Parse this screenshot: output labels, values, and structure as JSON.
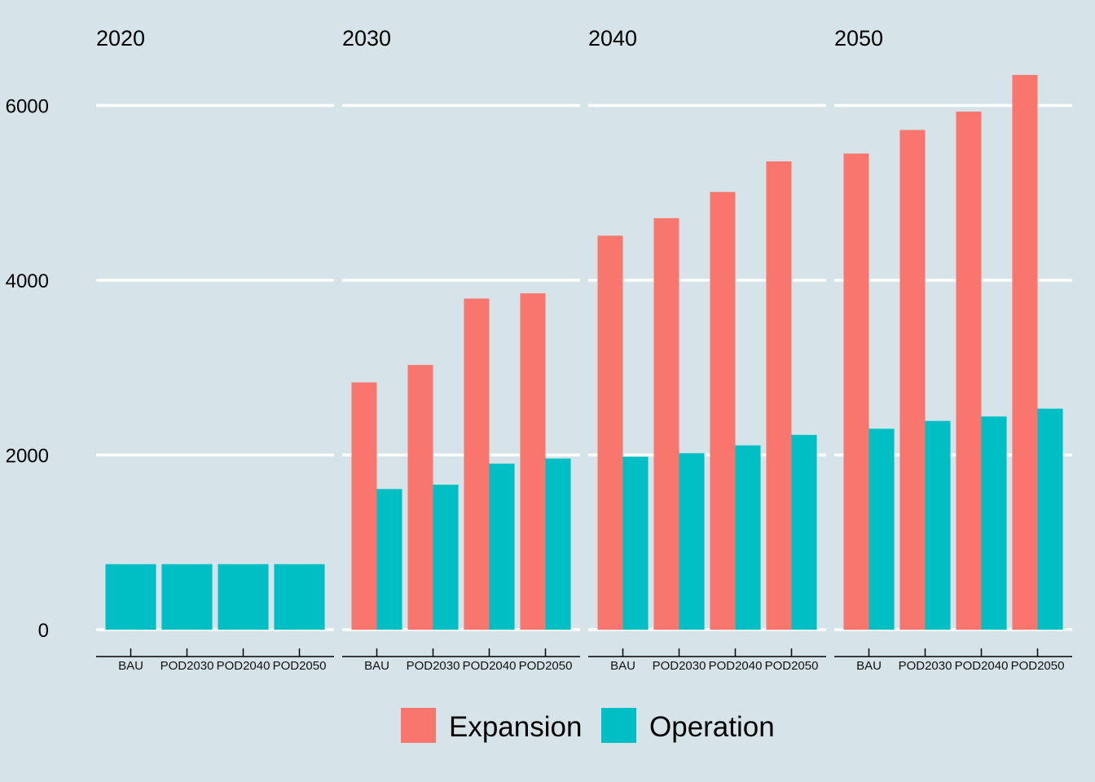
{
  "chart_data": {
    "type": "bar",
    "facets": [
      "2020",
      "2030",
      "2040",
      "2050"
    ],
    "categories": [
      "BAU",
      "POD2030",
      "POD2040",
      "POD2050"
    ],
    "series": [
      {
        "name": "Expansion",
        "color": "#f8766d",
        "values": [
          [
            0,
            0,
            0,
            0
          ],
          [
            2830,
            3030,
            3790,
            3850
          ],
          [
            4510,
            4710,
            5010,
            5360
          ],
          [
            5450,
            5720,
            5930,
            6350
          ]
        ]
      },
      {
        "name": "Operation",
        "color": "#00bfc4",
        "values": [
          [
            750,
            750,
            750,
            750
          ],
          [
            1610,
            1660,
            1900,
            1960
          ],
          [
            1980,
            2020,
            2110,
            2230
          ],
          [
            2300,
            2390,
            2440,
            2530
          ]
        ]
      }
    ],
    "yticks": [
      "0",
      "2000",
      "4000",
      "6000"
    ],
    "ylim": [
      0,
      6600
    ],
    "grid": true,
    "legend_position": "bottom"
  }
}
